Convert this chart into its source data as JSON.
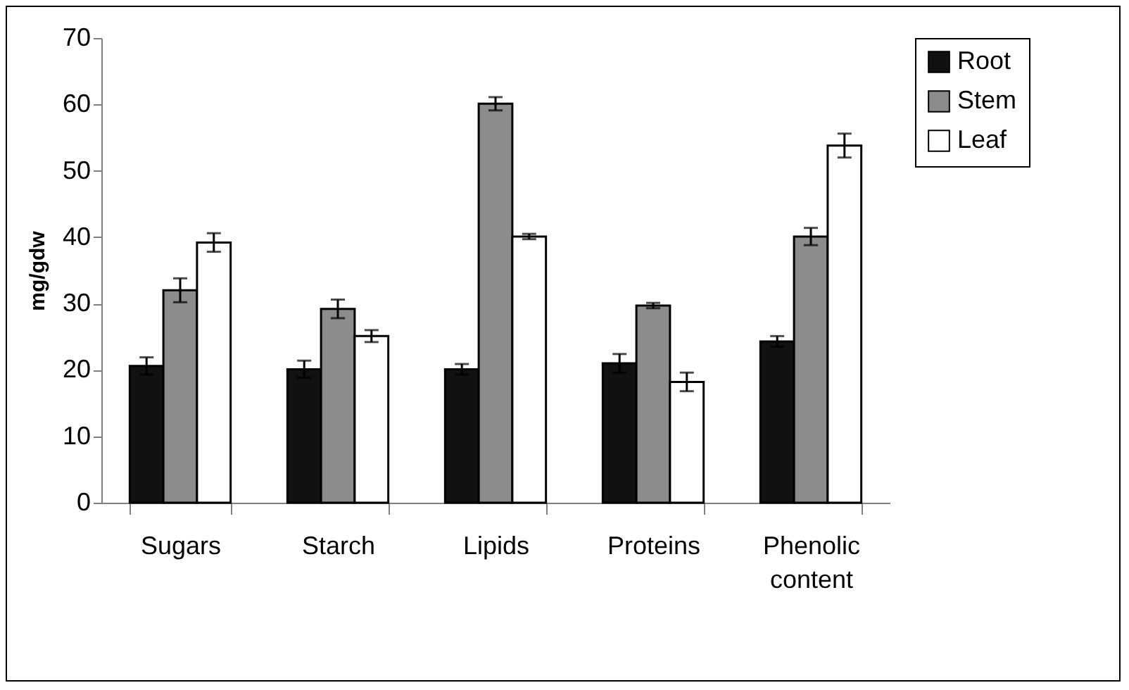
{
  "chart_data": {
    "type": "bar",
    "ylabel": "mg/gdw",
    "categories": [
      "Sugars",
      "Starch",
      "Lipids",
      "Proteins",
      "Phenolic content"
    ],
    "series": [
      {
        "name": "Root",
        "color": "#111111",
        "values": [
          20.6,
          20.1,
          20.1,
          21.0,
          24.3
        ],
        "errors": [
          1.3,
          1.3,
          0.8,
          1.4,
          0.8
        ]
      },
      {
        "name": "Stem",
        "color": "#8c8c8c",
        "values": [
          32.0,
          29.2,
          60.1,
          29.7,
          40.1
        ],
        "errors": [
          1.8,
          1.4,
          1.0,
          0.4,
          1.3
        ]
      },
      {
        "name": "Leaf",
        "color": "#ffffff",
        "values": [
          39.2,
          25.1,
          40.1,
          18.2,
          53.8
        ],
        "errors": [
          1.4,
          0.9,
          0.4,
          1.4,
          1.8
        ]
      }
    ],
    "ylim": [
      0,
      70
    ],
    "yticks": [
      0,
      10,
      20,
      30,
      40,
      50,
      60,
      70
    ],
    "grid": false,
    "legend": "right"
  }
}
